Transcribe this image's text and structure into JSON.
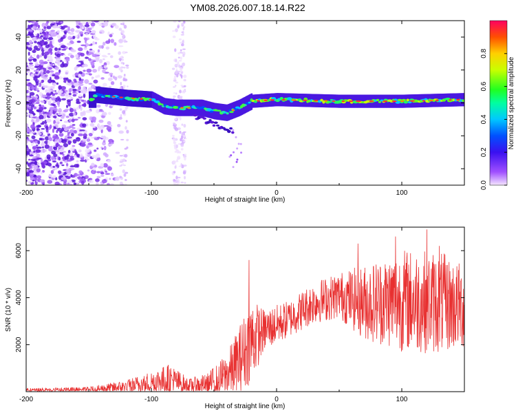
{
  "figure_title": "YM08.2026.007.18.14.R22",
  "chart_data": [
    {
      "type": "heatmap",
      "xlabel": "Height of straight line (km)",
      "ylabel": "Frequency (Hz)",
      "xlim": [
        -200,
        150
      ],
      "ylim": [
        -50,
        50
      ],
      "xticks": [
        -200,
        -100,
        0,
        100
      ],
      "yticks": [
        -40,
        -20,
        0,
        20,
        40
      ],
      "colorbar": {
        "label": "Normalized spectral amplitude",
        "range": [
          0,
          1
        ],
        "ticks": [
          0.0,
          0.2,
          0.4,
          0.6,
          0.8
        ]
      },
      "description_points": [
        {
          "x": -145,
          "freq": 5
        },
        {
          "x": -120,
          "freq": 3
        },
        {
          "x": -100,
          "freq": 2
        },
        {
          "x": -90,
          "freq": -2
        },
        {
          "x": -80,
          "freq": -3
        },
        {
          "x": -60,
          "freq": -3
        },
        {
          "x": -50,
          "freq": -5
        },
        {
          "x": -40,
          "freq": -6
        },
        {
          "x": -30,
          "freq": -3
        },
        {
          "x": -20,
          "freq": 1
        },
        {
          "x": 0,
          "freq": 2
        },
        {
          "x": 50,
          "freq": 1
        },
        {
          "x": 100,
          "freq": 1
        },
        {
          "x": 150,
          "freq": 2
        }
      ]
    },
    {
      "type": "line",
      "xlabel": "Height of straight line (km)",
      "ylabel": "SNR (10 * v/v)",
      "xlim": [
        -200,
        150
      ],
      "ylim": [
        0,
        7000
      ],
      "xticks": [
        -200,
        -100,
        0,
        100
      ],
      "yticks": [
        2000,
        4000,
        6000
      ],
      "color": "#e83030",
      "envelope": [
        {
          "x": -200,
          "base": 50,
          "amp": 100
        },
        {
          "x": -150,
          "base": 80,
          "amp": 120
        },
        {
          "x": -120,
          "base": 200,
          "amp": 300
        },
        {
          "x": -100,
          "base": 400,
          "amp": 500
        },
        {
          "x": -85,
          "base": 500,
          "amp": 700
        },
        {
          "x": -70,
          "base": 250,
          "amp": 300
        },
        {
          "x": -55,
          "base": 300,
          "amp": 500
        },
        {
          "x": -40,
          "base": 700,
          "amp": 900
        },
        {
          "x": -30,
          "base": 1300,
          "amp": 1500
        },
        {
          "x": -20,
          "base": 2200,
          "amp": 1800
        },
        {
          "x": -10,
          "base": 2600,
          "amp": 900
        },
        {
          "x": 10,
          "base": 3100,
          "amp": 800
        },
        {
          "x": 30,
          "base": 3800,
          "amp": 900
        },
        {
          "x": 50,
          "base": 4100,
          "amp": 1000
        },
        {
          "x": 70,
          "base": 3800,
          "amp": 1600
        },
        {
          "x": 100,
          "base": 3900,
          "amp": 2200
        },
        {
          "x": 130,
          "base": 3800,
          "amp": 2200
        },
        {
          "x": 150,
          "base": 3600,
          "amp": 1800
        }
      ],
      "peaks": [
        {
          "x": -22,
          "y": 5600
        },
        {
          "x": 65,
          "y": 6300
        },
        {
          "x": 95,
          "y": 6600
        },
        {
          "x": 120,
          "y": 6900
        },
        {
          "x": 130,
          "y": 6200
        }
      ]
    }
  ]
}
